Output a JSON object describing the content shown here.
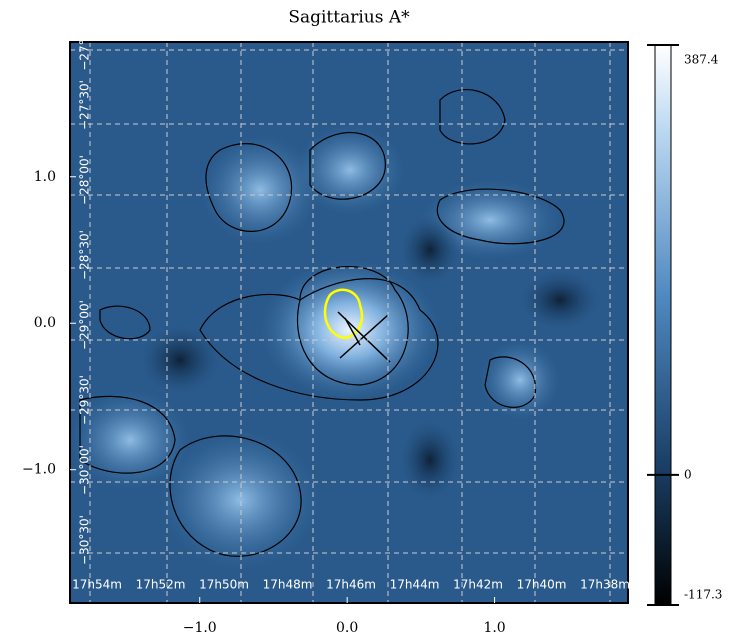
{
  "chart_data": {
    "type": "image",
    "title": "Sagittarius A*",
    "xlim": [
      -1.88,
      1.905
    ],
    "ylim": [
      -1.91,
      1.92
    ],
    "xticks": [
      {
        "value": -1,
        "label": "−1.0"
      },
      {
        "value": 0,
        "label": "0.0"
      },
      {
        "value": 1,
        "label": "1.0"
      }
    ],
    "yticks": [
      {
        "value": -1,
        "label": "−1.0"
      },
      {
        "value": 0,
        "label": "0.0"
      },
      {
        "value": 1,
        "label": "1.0"
      }
    ],
    "clim": [
      -117.3,
      387.4
    ],
    "cticks": [
      -117.3,
      0,
      387.4
    ],
    "ra_labels": [
      "17h54m",
      "17h52m",
      "17h50m",
      "17h48m",
      "17h46m",
      "17h44m",
      "17h42m",
      "17h40m",
      "17h38m"
    ],
    "dec_labels": [
      "−27°",
      "−27°30'",
      "−28°00'",
      "−28°30'",
      "−29°00'",
      "−29°30'",
      "−30°00'",
      "−30°30'"
    ]
  }
}
